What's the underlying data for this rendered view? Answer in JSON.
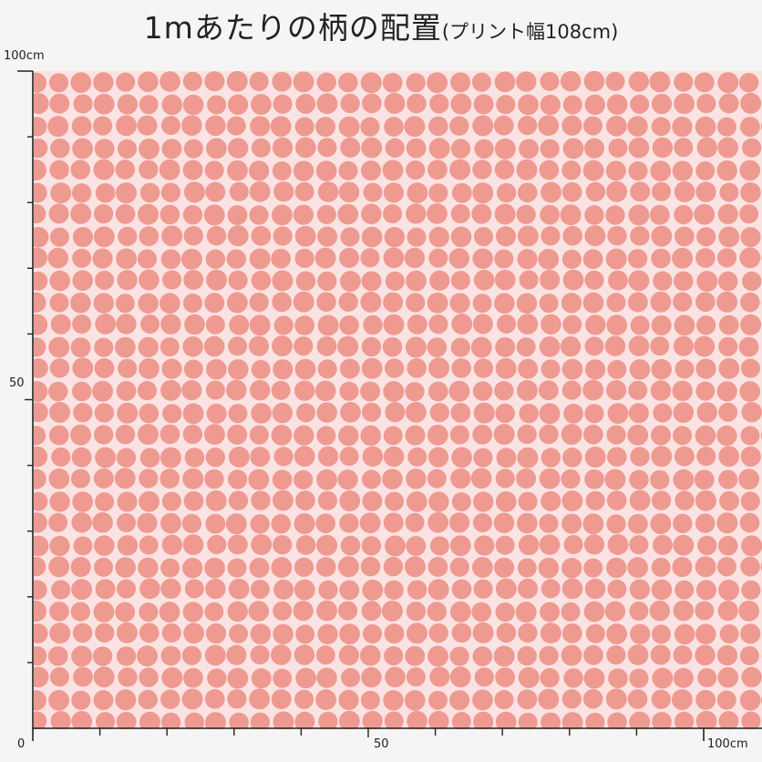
{
  "title": {
    "main": "1mあたりの柄の配置",
    "sub": "(プリント幅108cm)"
  },
  "ruler": {
    "y_top_label": "100cm",
    "y_mid_label": "50",
    "x_origin_label": "0",
    "x_mid_label": "50",
    "x_end_label": "100cm"
  },
  "pattern": {
    "background_color": "#fbe3e3",
    "dot_color": "#ee9a90",
    "dot_shape": "circle"
  }
}
